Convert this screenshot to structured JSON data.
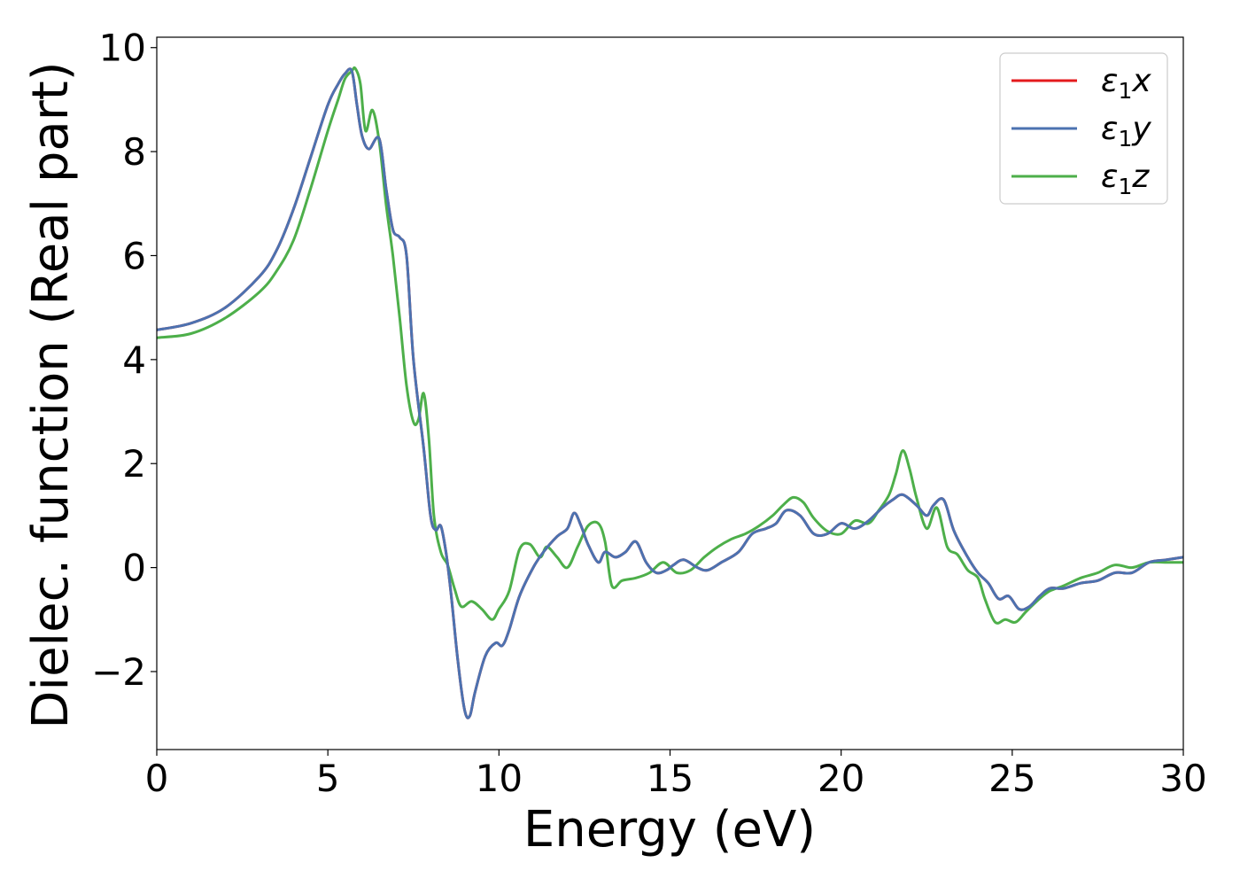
{
  "chart_data": {
    "type": "line",
    "xlabel": "Energy (eV)",
    "ylabel": "Dielec. function (Real part)",
    "xlim": [
      0,
      30
    ],
    "ylim": [
      -3.5,
      10.2
    ],
    "xticks": [
      0,
      5,
      10,
      15,
      20,
      25,
      30
    ],
    "yticks": [
      -2,
      0,
      2,
      4,
      6,
      8,
      10
    ],
    "ytick_labels": [
      "−2",
      "0",
      "2",
      "4",
      "6",
      "8",
      "10"
    ],
    "grid": false,
    "legend_position": "top-right",
    "series": [
      {
        "name_base": "ε",
        "name_sub": "1",
        "name_var": "x",
        "color": "#e41a1c",
        "x": [
          0,
          1,
          2,
          3,
          3.5,
          4,
          4.5,
          5,
          5.3,
          5.5,
          5.7,
          5.85,
          6.0,
          6.2,
          6.5,
          6.7,
          6.9,
          7.1,
          7.3,
          7.5,
          7.8,
          8.0,
          8.15,
          8.3,
          8.45,
          8.6,
          8.8,
          9.0,
          9.15,
          9.3,
          9.6,
          9.9,
          10.1,
          10.3,
          10.6,
          11.0,
          11.3,
          11.7,
          12.0,
          12.2,
          12.4,
          12.6,
          12.9,
          13.1,
          13.4,
          13.7,
          14.0,
          14.3,
          14.6,
          14.9,
          15.1,
          15.4,
          15.8,
          16.1,
          16.5,
          17.0,
          17.4,
          17.8,
          18.1,
          18.4,
          18.8,
          19.2,
          19.6,
          20.0,
          20.4,
          20.8,
          21.2,
          21.5,
          21.8,
          22.2,
          22.5,
          22.7,
          23.0,
          23.3,
          23.7,
          24.0,
          24.3,
          24.6,
          24.9,
          25.2,
          25.5,
          25.8,
          26.1,
          26.5,
          27.0,
          27.5,
          28.0,
          28.5,
          29.0,
          29.5,
          30.0
        ],
        "y": [
          4.57,
          4.7,
          5.0,
          5.6,
          6.1,
          6.9,
          7.9,
          8.9,
          9.3,
          9.5,
          9.55,
          8.9,
          8.3,
          8.05,
          8.25,
          7.3,
          6.5,
          6.35,
          6.0,
          4.0,
          2.3,
          1.0,
          0.72,
          0.8,
          0.3,
          -0.5,
          -1.8,
          -2.75,
          -2.85,
          -2.4,
          -1.7,
          -1.45,
          -1.5,
          -1.2,
          -0.55,
          0.0,
          0.3,
          0.6,
          0.75,
          1.05,
          0.8,
          0.45,
          0.1,
          0.3,
          0.2,
          0.3,
          0.5,
          0.1,
          -0.1,
          -0.05,
          0.05,
          0.15,
          0.0,
          -0.05,
          0.1,
          0.3,
          0.65,
          0.75,
          0.85,
          1.1,
          1.0,
          0.65,
          0.65,
          0.85,
          0.75,
          0.9,
          1.15,
          1.3,
          1.4,
          1.2,
          1.0,
          1.2,
          1.3,
          0.7,
          0.2,
          -0.1,
          -0.3,
          -0.6,
          -0.55,
          -0.8,
          -0.75,
          -0.55,
          -0.4,
          -0.4,
          -0.3,
          -0.25,
          -0.1,
          -0.1,
          0.1,
          0.15,
          0.2
        ]
      },
      {
        "name_base": "ε",
        "name_sub": "1",
        "name_var": "y",
        "color": "#4c72b0",
        "x": [
          0,
          1,
          2,
          3,
          3.5,
          4,
          4.5,
          5,
          5.3,
          5.5,
          5.7,
          5.85,
          6.0,
          6.2,
          6.5,
          6.7,
          6.9,
          7.1,
          7.3,
          7.5,
          7.8,
          8.0,
          8.15,
          8.3,
          8.45,
          8.6,
          8.8,
          9.0,
          9.15,
          9.3,
          9.6,
          9.9,
          10.1,
          10.3,
          10.6,
          11.0,
          11.3,
          11.7,
          12.0,
          12.2,
          12.4,
          12.6,
          12.9,
          13.1,
          13.4,
          13.7,
          14.0,
          14.3,
          14.6,
          14.9,
          15.1,
          15.4,
          15.8,
          16.1,
          16.5,
          17.0,
          17.4,
          17.8,
          18.1,
          18.4,
          18.8,
          19.2,
          19.6,
          20.0,
          20.4,
          20.8,
          21.2,
          21.5,
          21.8,
          22.2,
          22.5,
          22.7,
          23.0,
          23.3,
          23.7,
          24.0,
          24.3,
          24.6,
          24.9,
          25.2,
          25.5,
          25.8,
          26.1,
          26.5,
          27.0,
          27.5,
          28.0,
          28.5,
          29.0,
          29.5,
          30.0
        ],
        "y": [
          4.57,
          4.7,
          5.0,
          5.6,
          6.1,
          6.9,
          7.9,
          8.9,
          9.3,
          9.5,
          9.55,
          8.9,
          8.3,
          8.05,
          8.25,
          7.3,
          6.5,
          6.35,
          6.0,
          4.0,
          2.3,
          1.0,
          0.72,
          0.8,
          0.3,
          -0.5,
          -1.8,
          -2.75,
          -2.85,
          -2.4,
          -1.7,
          -1.45,
          -1.5,
          -1.2,
          -0.55,
          0.0,
          0.3,
          0.6,
          0.75,
          1.05,
          0.8,
          0.45,
          0.1,
          0.3,
          0.2,
          0.3,
          0.5,
          0.1,
          -0.1,
          -0.05,
          0.05,
          0.15,
          0.0,
          -0.05,
          0.1,
          0.3,
          0.65,
          0.75,
          0.85,
          1.1,
          1.0,
          0.65,
          0.65,
          0.85,
          0.75,
          0.9,
          1.15,
          1.3,
          1.4,
          1.2,
          1.0,
          1.2,
          1.3,
          0.7,
          0.2,
          -0.1,
          -0.3,
          -0.6,
          -0.55,
          -0.8,
          -0.75,
          -0.55,
          -0.4,
          -0.4,
          -0.3,
          -0.25,
          -0.1,
          -0.1,
          0.1,
          0.15,
          0.2
        ]
      },
      {
        "name_base": "ε",
        "name_sub": "1",
        "name_var": "z",
        "color": "#4daf4a",
        "x": [
          0,
          1,
          2,
          3,
          3.5,
          4,
          4.5,
          5,
          5.3,
          5.5,
          5.7,
          5.8,
          5.95,
          6.1,
          6.3,
          6.5,
          6.7,
          6.9,
          7.1,
          7.3,
          7.5,
          7.65,
          7.8,
          7.95,
          8.1,
          8.3,
          8.5,
          8.7,
          8.9,
          9.2,
          9.5,
          9.8,
          10.0,
          10.3,
          10.6,
          10.9,
          11.2,
          11.4,
          11.7,
          12.0,
          12.3,
          12.6,
          12.9,
          13.1,
          13.3,
          13.6,
          14.0,
          14.4,
          14.8,
          15.2,
          15.6,
          16.0,
          16.4,
          16.8,
          17.2,
          17.6,
          18.0,
          18.3,
          18.6,
          18.9,
          19.2,
          19.6,
          20.0,
          20.4,
          20.8,
          21.1,
          21.4,
          21.6,
          21.8,
          22.0,
          22.2,
          22.5,
          22.8,
          23.1,
          23.4,
          23.7,
          24.0,
          24.2,
          24.5,
          24.8,
          25.1,
          25.4,
          25.8,
          26.1,
          26.5,
          27.0,
          27.5,
          28.0,
          28.5,
          29.0,
          29.5,
          30.0
        ],
        "y": [
          4.42,
          4.5,
          4.8,
          5.3,
          5.7,
          6.3,
          7.3,
          8.4,
          9.0,
          9.4,
          9.55,
          9.6,
          9.3,
          8.4,
          8.8,
          8.2,
          7.0,
          6.0,
          4.8,
          3.5,
          2.8,
          2.85,
          3.35,
          2.5,
          1.0,
          0.3,
          0.05,
          -0.4,
          -0.75,
          -0.65,
          -0.8,
          -1.0,
          -0.8,
          -0.45,
          0.35,
          0.45,
          0.2,
          0.4,
          0.2,
          0.0,
          0.4,
          0.8,
          0.85,
          0.5,
          -0.35,
          -0.25,
          -0.2,
          -0.1,
          0.1,
          -0.1,
          -0.05,
          0.2,
          0.4,
          0.55,
          0.65,
          0.8,
          1.0,
          1.2,
          1.35,
          1.25,
          0.95,
          0.7,
          0.65,
          0.9,
          0.85,
          1.1,
          1.4,
          1.8,
          2.25,
          1.9,
          1.35,
          0.75,
          1.15,
          0.4,
          0.25,
          -0.05,
          -0.2,
          -0.6,
          -1.05,
          -1.0,
          -1.05,
          -0.85,
          -0.6,
          -0.45,
          -0.35,
          -0.2,
          -0.1,
          0.05,
          0.0,
          0.1,
          0.1,
          0.1
        ]
      }
    ]
  }
}
